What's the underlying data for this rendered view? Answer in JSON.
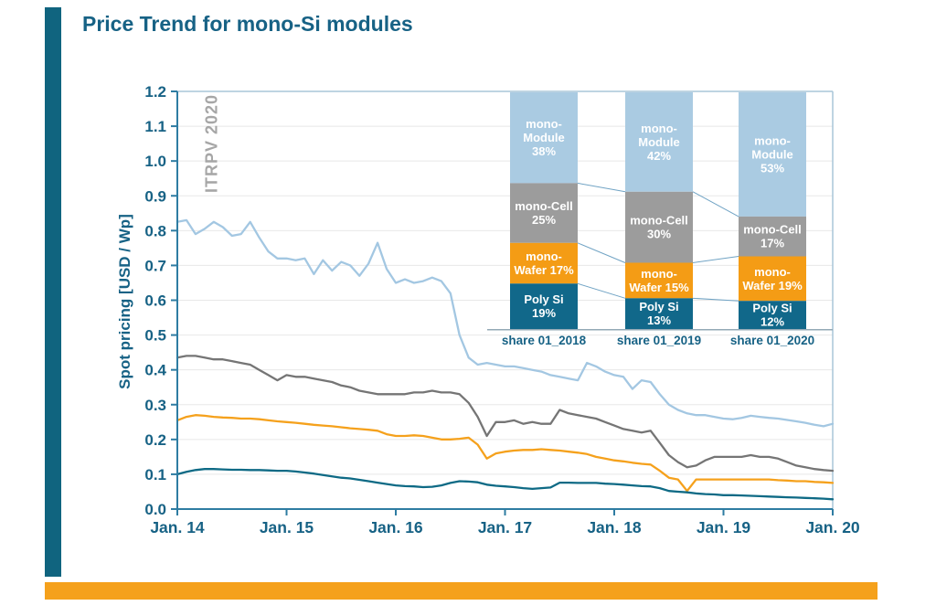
{
  "page": {
    "title": "Price Trend for mono-Si modules",
    "watermark": "ITRPV 2020",
    "accent_colors": {
      "teal_bar": "#10647f",
      "orange_bar": "#f5a11c"
    }
  },
  "chart_data": [
    {
      "type": "line",
      "title": "Price Trend for mono-Si modules",
      "xlabel": "",
      "ylabel": "Spot pricing [USD / Wp]",
      "ylim": [
        0,
        1.2
      ],
      "ytick_step": 0.1,
      "grid": true,
      "legend": "labels inside inset stacked bars",
      "yticks": [
        "0.0",
        "0.1",
        "0.2",
        "0.3",
        "0.4",
        "0.5",
        "0.6",
        "0.7",
        "0.8",
        "0.9",
        "1.0",
        "1.1",
        "1.2"
      ],
      "xticks": [
        "Jan. 14",
        "Jan. 15",
        "Jan. 16",
        "Jan. 17",
        "Jan. 18",
        "Jan. 19",
        "Jan. 20"
      ],
      "x_unit": "monthly points from Jan 2014 to Jan 2020",
      "colors": {
        "text": "#176285",
        "axis": "#2e7ca2",
        "border": "#a9c6d8",
        "grid": "#e8e8e8"
      },
      "series": [
        {
          "name": "mono-Module",
          "color": "#a3c7e2",
          "values": [
            0.825,
            0.83,
            0.79,
            0.805,
            0.825,
            0.81,
            0.785,
            0.79,
            0.825,
            0.78,
            0.74,
            0.72,
            0.72,
            0.715,
            0.72,
            0.675,
            0.715,
            0.685,
            0.71,
            0.7,
            0.67,
            0.705,
            0.765,
            0.69,
            0.65,
            0.66,
            0.65,
            0.655,
            0.665,
            0.655,
            0.62,
            0.5,
            0.435,
            0.415,
            0.42,
            0.415,
            0.41,
            0.41,
            0.405,
            0.4,
            0.395,
            0.385,
            0.38,
            0.375,
            0.37,
            0.42,
            0.41,
            0.395,
            0.385,
            0.38,
            0.345,
            0.37,
            0.365,
            0.33,
            0.3,
            0.285,
            0.275,
            0.27,
            0.27,
            0.265,
            0.26,
            0.258,
            0.262,
            0.268,
            0.265,
            0.262,
            0.26,
            0.256,
            0.252,
            0.248,
            0.242,
            0.238,
            0.245
          ]
        },
        {
          "name": "mono-Cell",
          "color": "#757575",
          "values": [
            0.435,
            0.44,
            0.44,
            0.435,
            0.43,
            0.43,
            0.425,
            0.42,
            0.415,
            0.4,
            0.385,
            0.37,
            0.385,
            0.38,
            0.38,
            0.375,
            0.37,
            0.365,
            0.355,
            0.35,
            0.34,
            0.335,
            0.33,
            0.33,
            0.33,
            0.33,
            0.335,
            0.335,
            0.34,
            0.335,
            0.335,
            0.33,
            0.305,
            0.265,
            0.21,
            0.25,
            0.25,
            0.255,
            0.245,
            0.25,
            0.245,
            0.245,
            0.285,
            0.275,
            0.27,
            0.265,
            0.26,
            0.25,
            0.24,
            0.23,
            0.225,
            0.22,
            0.225,
            0.19,
            0.155,
            0.135,
            0.12,
            0.125,
            0.14,
            0.15,
            0.15,
            0.15,
            0.15,
            0.155,
            0.15,
            0.15,
            0.145,
            0.135,
            0.125,
            0.12,
            0.115,
            0.112,
            0.11
          ]
        },
        {
          "name": "mono-Wafer",
          "color": "#f5a11c",
          "values": [
            0.255,
            0.265,
            0.27,
            0.268,
            0.265,
            0.263,
            0.262,
            0.26,
            0.26,
            0.258,
            0.255,
            0.252,
            0.25,
            0.248,
            0.245,
            0.242,
            0.24,
            0.238,
            0.235,
            0.232,
            0.23,
            0.228,
            0.225,
            0.215,
            0.21,
            0.21,
            0.212,
            0.21,
            0.205,
            0.2,
            0.2,
            0.202,
            0.205,
            0.185,
            0.145,
            0.16,
            0.165,
            0.168,
            0.17,
            0.17,
            0.172,
            0.17,
            0.168,
            0.165,
            0.162,
            0.158,
            0.15,
            0.145,
            0.14,
            0.137,
            0.133,
            0.13,
            0.128,
            0.11,
            0.09,
            0.085,
            0.052,
            0.085,
            0.085,
            0.085,
            0.085,
            0.085,
            0.085,
            0.085,
            0.085,
            0.085,
            0.083,
            0.082,
            0.08,
            0.08,
            0.078,
            0.077,
            0.075
          ]
        },
        {
          "name": "Poly Si",
          "color": "#0e6a85",
          "values": [
            0.1,
            0.107,
            0.112,
            0.115,
            0.115,
            0.114,
            0.113,
            0.113,
            0.112,
            0.112,
            0.111,
            0.11,
            0.11,
            0.108,
            0.105,
            0.102,
            0.098,
            0.094,
            0.09,
            0.088,
            0.084,
            0.08,
            0.076,
            0.072,
            0.068,
            0.066,
            0.065,
            0.063,
            0.064,
            0.068,
            0.075,
            0.08,
            0.079,
            0.077,
            0.07,
            0.067,
            0.065,
            0.063,
            0.06,
            0.058,
            0.06,
            0.062,
            0.076,
            0.076,
            0.075,
            0.075,
            0.075,
            0.073,
            0.072,
            0.07,
            0.068,
            0.066,
            0.065,
            0.06,
            0.052,
            0.05,
            0.048,
            0.045,
            0.043,
            0.042,
            0.04,
            0.04,
            0.039,
            0.038,
            0.037,
            0.036,
            0.035,
            0.034,
            0.033,
            0.032,
            0.031,
            0.03,
            0.028
          ]
        }
      ]
    },
    {
      "type": "bar",
      "stacked": true,
      "title": "market share inset",
      "categories": [
        "share 01_2018",
        "share 01_2019",
        "share 01_2020"
      ],
      "series": [
        {
          "name": "mono-Module",
          "color": "#aacbe2",
          "values": [
            38,
            42,
            53
          ]
        },
        {
          "name": "mono-Cell",
          "color": "#9c9c9c",
          "values": [
            25,
            30,
            17
          ]
        },
        {
          "name": "mono-Wafer",
          "color": "#f49c15",
          "values": [
            17,
            15,
            19
          ]
        },
        {
          "name": "Poly Si",
          "color": "#11688a",
          "values": [
            19,
            13,
            12
          ]
        }
      ],
      "labels": [
        [
          [
            "mono-",
            "Module",
            "38%"
          ],
          [
            "mono-Cell",
            "25%"
          ],
          [
            "mono-",
            "Wafer 17%"
          ],
          [
            "Poly Si",
            "19%"
          ]
        ],
        [
          [
            "mono-",
            "Module",
            "42%"
          ],
          [
            "mono-Cell",
            "30%"
          ],
          [
            "mono-",
            "Wafer 15%"
          ],
          [
            "Poly Si",
            "13%"
          ]
        ],
        [
          [
            "mono-",
            "Module",
            "53%"
          ],
          [
            "mono-Cell",
            "17%"
          ],
          [
            "mono-",
            "Wafer 19%"
          ],
          [
            "Poly Si",
            "12%"
          ]
        ]
      ],
      "connector_color": "#70a3c4",
      "baseline_color": "#93a9b6",
      "label_text_color": "#ffffff",
      "category_text_color": "#176285"
    }
  ]
}
